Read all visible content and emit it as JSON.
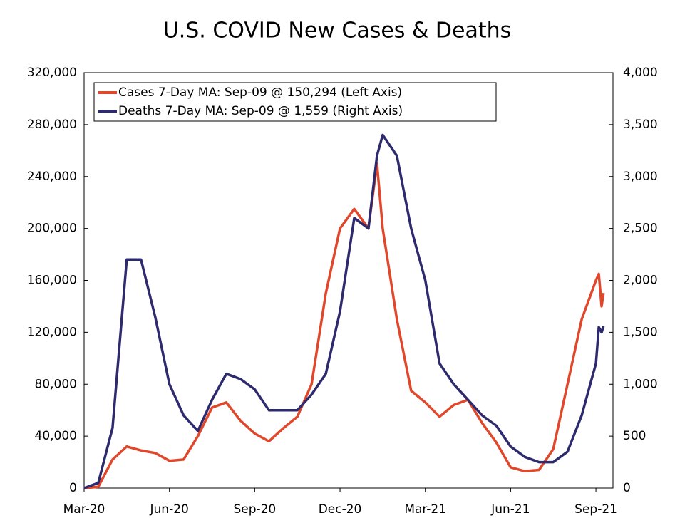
{
  "chart_data": {
    "type": "line",
    "title": "U.S. COVID New Cases & Deaths",
    "x": [
      0,
      0.5,
      1,
      1.5,
      2,
      2.5,
      3,
      3.5,
      4,
      4.5,
      5,
      5.5,
      6,
      6.5,
      7,
      7.5,
      8,
      8.5,
      9,
      9.5,
      10,
      10.3,
      10.5,
      11,
      11.5,
      12,
      12.5,
      13,
      13.5,
      14,
      14.5,
      15,
      15.5,
      16,
      16.5,
      17,
      17.5,
      18,
      18.1,
      18.2,
      18.27
    ],
    "series": [
      {
        "name": "Cases 7-Day MA: Sep-09 @ 150,294 (Left Axis)",
        "color": "#e0472b",
        "values": [
          0,
          1000,
          22000,
          32000,
          29000,
          27000,
          21000,
          22000,
          40000,
          62000,
          66000,
          52000,
          42000,
          36000,
          46000,
          55000,
          80000,
          150000,
          200000,
          215000,
          200000,
          250000,
          200000,
          130000,
          75000,
          66000,
          55000,
          64000,
          68000,
          50000,
          35000,
          16000,
          13000,
          14000,
          30000,
          80000,
          130000,
          160000,
          165000,
          140000,
          150294
        ]
      },
      {
        "name": "Deaths 7-Day MA: Sep-09 @ 1,559 (Right Axis)",
        "color": "#2e2a6e",
        "axis": "y2",
        "values": [
          0,
          50,
          580,
          2200,
          2200,
          1650,
          1000,
          700,
          550,
          850,
          1100,
          1050,
          950,
          750,
          750,
          750,
          900,
          1100,
          1700,
          2600,
          2500,
          3200,
          3400,
          3200,
          2500,
          2000,
          1200,
          1000,
          850,
          700,
          600,
          400,
          300,
          250,
          250,
          350,
          700,
          1200,
          1550,
          1500,
          1559
        ]
      }
    ],
    "xlim": [
      0,
      18.6
    ],
    "xticks": [
      {
        "value": 0,
        "label": "Mar-20"
      },
      {
        "value": 3,
        "label": "Jun-20"
      },
      {
        "value": 6,
        "label": "Sep-20"
      },
      {
        "value": 9,
        "label": "Dec-20"
      },
      {
        "value": 12,
        "label": "Mar-21"
      },
      {
        "value": 15,
        "label": "Jun-21"
      },
      {
        "value": 18,
        "label": "Sep-21"
      }
    ],
    "ylim": [
      0,
      320000
    ],
    "yticks": [
      0,
      {
        "value": 40000,
        "label": "40,000"
      },
      {
        "value": 80000,
        "label": "80,000"
      },
      {
        "value": 120000,
        "label": "120,000"
      },
      {
        "value": 160000,
        "label": "160,000"
      },
      {
        "value": 200000,
        "label": "200,000"
      },
      {
        "value": 240000,
        "label": "240,000"
      },
      {
        "value": 280000,
        "label": "280,000"
      },
      {
        "value": 320000,
        "label": "320,000"
      }
    ],
    "y2lim": [
      0,
      4000
    ],
    "y2ticks": [
      0,
      500,
      {
        "value": 1000,
        "label": "1,000"
      },
      {
        "value": 1500,
        "label": "1,500"
      },
      {
        "value": 2000,
        "label": "2,000"
      },
      {
        "value": 2500,
        "label": "2,500"
      },
      {
        "value": 3000,
        "label": "3,000"
      },
      {
        "value": 3500,
        "label": "3,500"
      },
      {
        "value": 4000,
        "label": "4,000"
      }
    ],
    "legend": "upper left"
  }
}
